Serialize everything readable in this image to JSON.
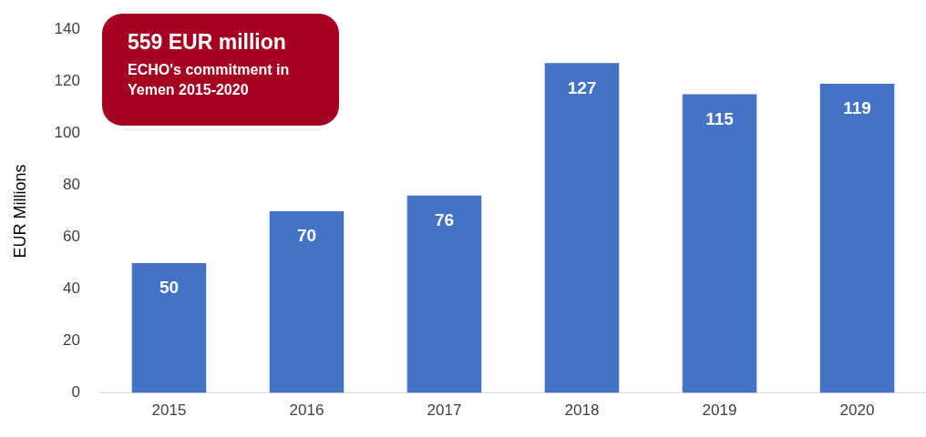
{
  "chart_data": {
    "type": "bar",
    "ylabel": "EUR Millions",
    "categories": [
      "2015",
      "2016",
      "2017",
      "2018",
      "2019",
      "2020"
    ],
    "values": [
      50,
      70,
      76,
      127,
      115,
      119
    ],
    "color": "#4472c4",
    "ylim": [
      0,
      140
    ],
    "yticks": [
      0,
      20,
      40,
      60,
      80,
      100,
      120,
      140
    ],
    "grid": false,
    "data_labels": true,
    "annotations": [
      "559 EUR million",
      "ECHO's commitment in Yemen 2015-2020"
    ]
  }
}
